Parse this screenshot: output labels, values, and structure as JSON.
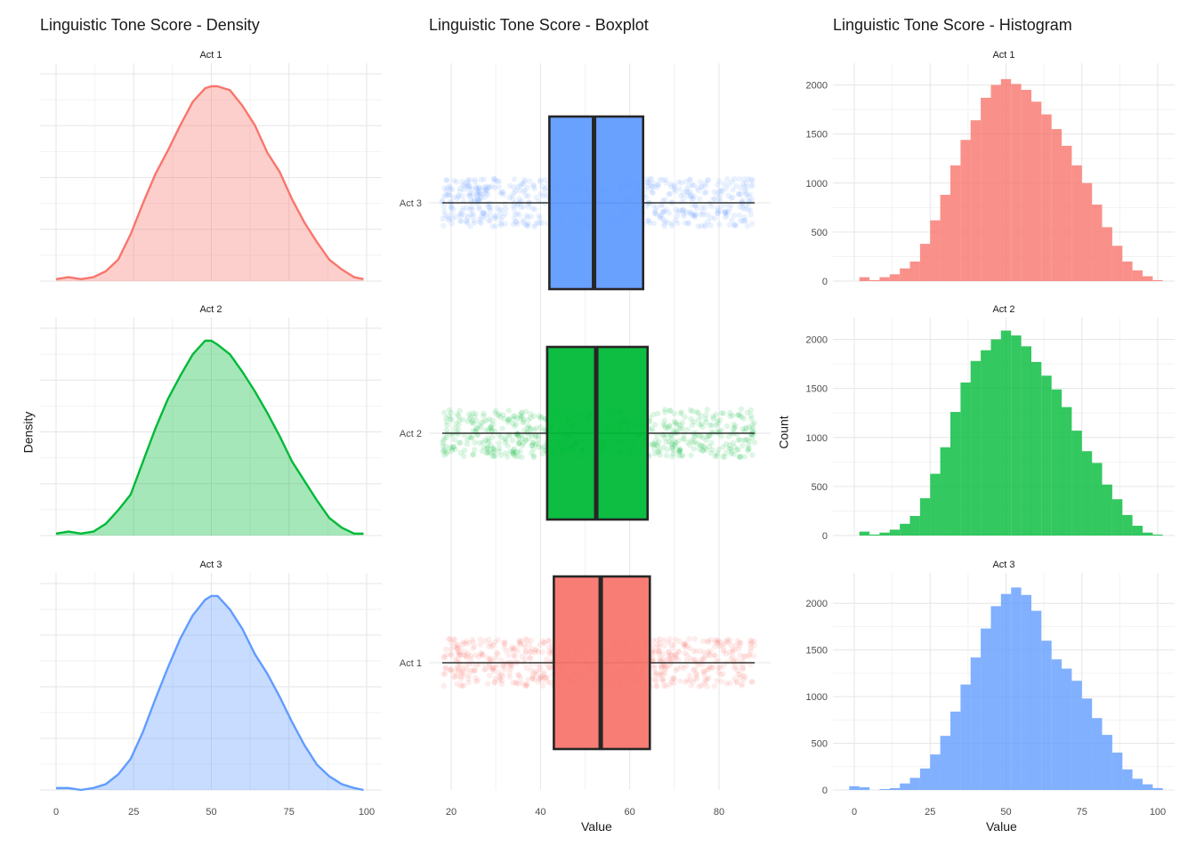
{
  "chart_data": [
    {
      "type": "area",
      "title": "Linguistic Tone Score - Density",
      "xlabel": "",
      "ylabel": "Density",
      "xlim": [
        0,
        100
      ],
      "x_ticks": [
        "0",
        "25",
        "50",
        "75",
        "100"
      ],
      "grid": true,
      "facets": [
        {
          "name": "Act 1",
          "color": "#F8766D",
          "x": [
            0,
            4,
            8,
            12,
            16,
            20,
            24,
            28,
            32,
            36,
            40,
            44,
            48,
            50,
            52,
            56,
            60,
            64,
            68,
            72,
            76,
            80,
            84,
            88,
            92,
            96,
            99
          ],
          "y": [
            0.01,
            0.02,
            0.01,
            0.02,
            0.05,
            0.11,
            0.24,
            0.4,
            0.55,
            0.67,
            0.8,
            0.92,
            0.99,
            1.0,
            1.0,
            0.98,
            0.9,
            0.8,
            0.66,
            0.56,
            0.42,
            0.3,
            0.2,
            0.11,
            0.06,
            0.02,
            0.01
          ]
        },
        {
          "name": "Act 2",
          "color": "#00BA38",
          "x": [
            0,
            4,
            8,
            12,
            16,
            20,
            24,
            28,
            32,
            36,
            40,
            44,
            48,
            50,
            52,
            56,
            60,
            64,
            68,
            72,
            76,
            80,
            84,
            88,
            92,
            96,
            99
          ],
          "y": [
            0.01,
            0.02,
            0.01,
            0.02,
            0.06,
            0.13,
            0.21,
            0.38,
            0.55,
            0.7,
            0.82,
            0.93,
            1.0,
            1.0,
            0.98,
            0.93,
            0.84,
            0.74,
            0.63,
            0.51,
            0.38,
            0.28,
            0.18,
            0.09,
            0.04,
            0.01,
            0.01
          ]
        },
        {
          "name": "Act 3",
          "color": "#619CFF",
          "x": [
            0,
            4,
            8,
            12,
            16,
            20,
            24,
            28,
            32,
            36,
            40,
            44,
            48,
            50,
            52,
            56,
            60,
            64,
            68,
            72,
            76,
            80,
            84,
            88,
            92,
            96,
            99
          ],
          "y": [
            0.01,
            0.01,
            0.0,
            0.01,
            0.03,
            0.08,
            0.16,
            0.3,
            0.47,
            0.63,
            0.78,
            0.9,
            0.98,
            1.0,
            1.0,
            0.93,
            0.83,
            0.7,
            0.6,
            0.48,
            0.35,
            0.23,
            0.13,
            0.07,
            0.03,
            0.01,
            0.0
          ]
        }
      ]
    },
    {
      "type": "box",
      "title": "Linguistic Tone Score - Boxplot",
      "xlabel": "Value",
      "ylabel": "",
      "xlim": [
        17,
        88
      ],
      "x_ticks": [
        "20",
        "40",
        "60",
        "80"
      ],
      "grid": true,
      "groups": [
        {
          "name": "Act 3",
          "color": "#619CFF",
          "q1": 42,
          "median": 52,
          "q3": 63,
          "whisker_low": 18,
          "whisker_high": 88
        },
        {
          "name": "Act 2",
          "color": "#00BA38",
          "q1": 41.5,
          "median": 52.5,
          "q3": 64,
          "whisker_low": 18,
          "whisker_high": 88
        },
        {
          "name": "Act 1",
          "color": "#F8766D",
          "q1": 43,
          "median": 53.5,
          "q3": 64.5,
          "whisker_low": 18,
          "whisker_high": 88
        }
      ]
    },
    {
      "type": "bar",
      "title": "Linguistic Tone Score - Histogram",
      "xlabel": "Value",
      "ylabel": "Count",
      "xlim": [
        0,
        100
      ],
      "x_ticks": [
        "0",
        "25",
        "50",
        "75",
        "100"
      ],
      "bin_width": 3.33,
      "grid": true,
      "facets": [
        {
          "name": "Act 1",
          "color": "#F8766D",
          "y_ticks": [
            "0",
            "500",
            "1000",
            "1500",
            "2000"
          ],
          "ylim": [
            0,
            2150
          ],
          "bin_centers": [
            0,
            3.33,
            6.67,
            10,
            13.33,
            16.67,
            20,
            23.33,
            26.67,
            30,
            33.33,
            36.67,
            40,
            43.33,
            46.67,
            50,
            53.33,
            56.67,
            60,
            63.33,
            66.67,
            70,
            73.33,
            76.67,
            80,
            83.33,
            86.67,
            90,
            93.33,
            96.67,
            100
          ],
          "values": [
            0,
            40,
            10,
            40,
            70,
            130,
            200,
            380,
            620,
            880,
            1180,
            1440,
            1640,
            1870,
            2000,
            2060,
            2010,
            1950,
            1830,
            1700,
            1550,
            1380,
            1180,
            1000,
            780,
            550,
            360,
            200,
            110,
            50,
            10
          ]
        },
        {
          "name": "Act 2",
          "color": "#00BA38",
          "y_ticks": [
            "0",
            "500",
            "1000",
            "1500",
            "2000"
          ],
          "ylim": [
            0,
            2150
          ],
          "bin_centers": [
            0,
            3.33,
            6.67,
            10,
            13.33,
            16.67,
            20,
            23.33,
            26.67,
            30,
            33.33,
            36.67,
            40,
            43.33,
            46.67,
            50,
            53.33,
            56.67,
            60,
            63.33,
            66.67,
            70,
            73.33,
            76.67,
            80,
            83.33,
            86.67,
            90,
            93.33,
            96.67,
            100
          ],
          "values": [
            0,
            40,
            10,
            30,
            60,
            120,
            200,
            380,
            630,
            900,
            1260,
            1560,
            1780,
            1890,
            2000,
            2090,
            2040,
            1930,
            1770,
            1630,
            1490,
            1310,
            1070,
            860,
            740,
            520,
            370,
            210,
            100,
            30,
            10
          ]
        },
        {
          "name": "Act 3",
          "color": "#619CFF",
          "y_ticks": [
            "0",
            "500",
            "1000",
            "1500",
            "2000"
          ],
          "ylim": [
            0,
            2250
          ],
          "bin_centers": [
            0,
            3.33,
            6.67,
            10,
            13.33,
            16.67,
            20,
            23.33,
            26.67,
            30,
            33.33,
            36.67,
            40,
            43.33,
            46.67,
            50,
            53.33,
            56.67,
            60,
            63.33,
            66.67,
            70,
            73.33,
            76.67,
            80,
            83.33,
            86.67,
            90,
            93.33,
            96.67,
            100
          ],
          "values": [
            40,
            30,
            0,
            10,
            20,
            70,
            130,
            230,
            380,
            580,
            840,
            1130,
            1420,
            1730,
            1970,
            2100,
            2170,
            2090,
            1920,
            1600,
            1400,
            1300,
            1170,
            980,
            770,
            590,
            400,
            220,
            120,
            60,
            20
          ]
        }
      ]
    }
  ]
}
